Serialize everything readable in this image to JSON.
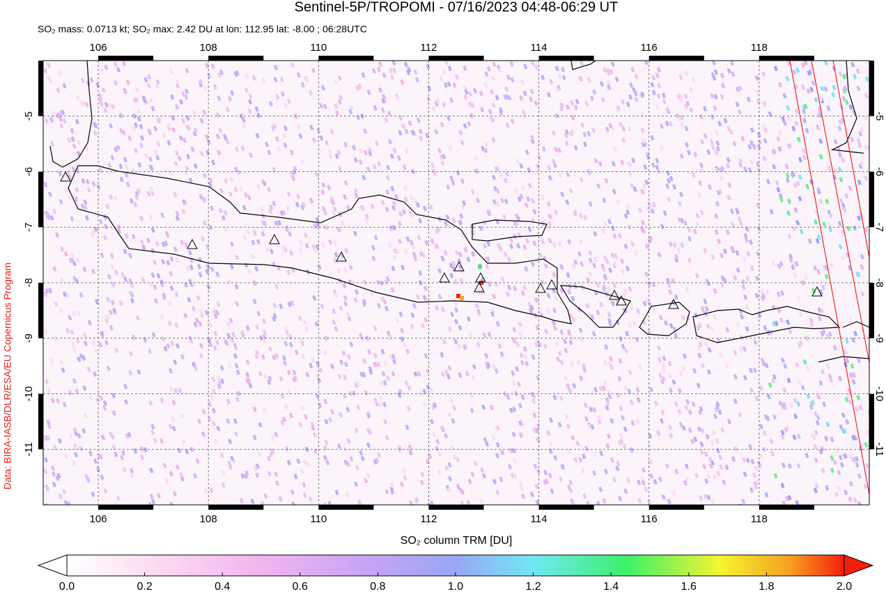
{
  "title": "Sentinel-5P/TROPOMI - 07/16/2023 04:48-06:29 UT",
  "subtitle": "SO₂ mass: 0.0713 kt; SO₂ max: 2.42 DU at lon: 112.95 lat: -8.00 ; 06:28UTC",
  "credit": "Data: BIRA-IASB/DLR/ESA/EU Copernicus Program",
  "map": {
    "xlim": [
      105,
      120
    ],
    "ylim": [
      -12,
      -4
    ],
    "xticks": [
      106,
      108,
      110,
      112,
      114,
      116,
      118
    ],
    "yticks": [
      -5,
      -6,
      -7,
      -8,
      -9,
      -10,
      -11
    ]
  },
  "colorbar": {
    "label": "SO₂ column TRM [DU]",
    "lim": [
      0,
      2
    ],
    "ticks": [
      {
        "value": 0,
        "label": "0.0"
      },
      0.2,
      0.4,
      0.6,
      0.8,
      {
        "value": 1,
        "label": "1.0"
      },
      1.2,
      1.4,
      1.6,
      1.8,
      {
        "value": 2,
        "label": "2.0"
      }
    ]
  }
}
